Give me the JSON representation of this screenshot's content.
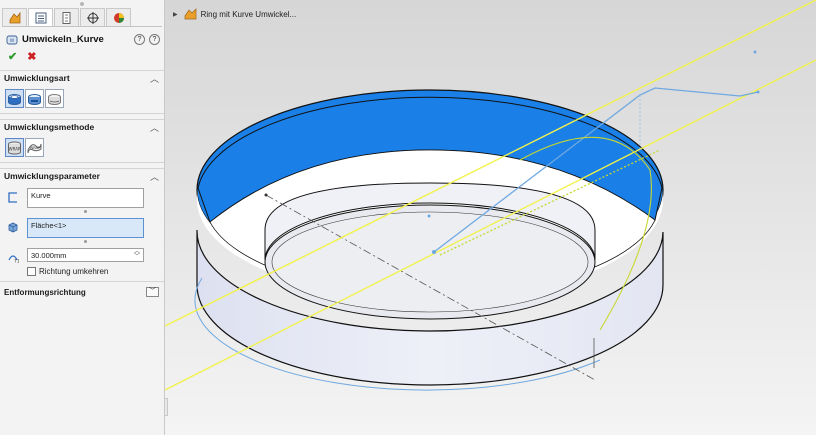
{
  "feature": {
    "title": "Umwickeln_Kurve",
    "help_labels": [
      "?",
      "?"
    ],
    "ok_label": "✔",
    "cancel_label": "✖"
  },
  "tabs": [
    {
      "icon": "feature-manager-icon",
      "active": false
    },
    {
      "icon": "property-manager-icon",
      "active": true
    },
    {
      "icon": "configuration-manager-icon",
      "active": false
    },
    {
      "icon": "dimxpert-icon",
      "active": false
    },
    {
      "icon": "display-manager-icon",
      "active": false
    }
  ],
  "groups": {
    "umwicklungsart": {
      "title": "Umwicklungsart",
      "options": [
        "emboss",
        "deboss",
        "scribe"
      ],
      "selected": 0
    },
    "umwicklungsmethode": {
      "title": "Umwicklungsmethode",
      "options": [
        "analytical",
        "spline-surface"
      ],
      "selected": 0
    },
    "umwicklungsparameter": {
      "title": "Umwicklungsparameter",
      "sketch_value": "Kurve",
      "face_value": "Fläche<1>",
      "thickness_value": "30.000mm",
      "reverse_label": "Richtung umkehren",
      "reverse_checked": false
    },
    "entformungsrichtung": {
      "title": "Entformungsrichtung"
    }
  },
  "viewport": {
    "breadcrumb": "Ring mit Kurve Umwickel...",
    "colors": {
      "background": "#ebebeb",
      "ring_body": "#e5e7f2",
      "face_highlight": "#1a7fe6",
      "sketch_lines": "#f2f24a",
      "curve": "#6fa8e0"
    }
  }
}
